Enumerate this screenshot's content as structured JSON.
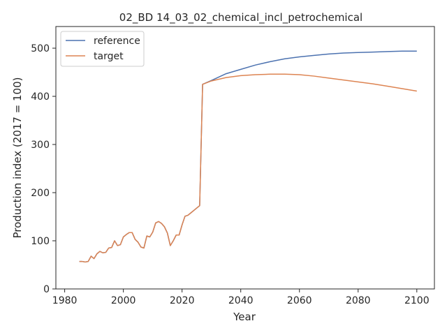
{
  "chart_data": {
    "type": "line",
    "title": "02_BD 14_03_02_chemical_incl_petrochemical",
    "xlabel": "Year",
    "ylabel": "Production index (2017 = 100)",
    "xlim": [
      1977,
      2106
    ],
    "ylim": [
      0,
      545
    ],
    "xticks": [
      1980,
      2000,
      2020,
      2040,
      2060,
      2080,
      2100
    ],
    "yticks": [
      0,
      100,
      200,
      300,
      400,
      500
    ],
    "grid": false,
    "legend_position": "top-left",
    "series": [
      {
        "name": "reference",
        "color": "#4c72b0",
        "x": [
          1985,
          1986,
          1987,
          1988,
          1989,
          1990,
          1991,
          1992,
          1993,
          1994,
          1995,
          1996,
          1997,
          1998,
          1999,
          2000,
          2001,
          2002,
          2003,
          2004,
          2005,
          2006,
          2007,
          2008,
          2009,
          2010,
          2011,
          2012,
          2013,
          2014,
          2015,
          2016,
          2017,
          2018,
          2019,
          2020,
          2021,
          2022,
          2023,
          2024,
          2025,
          2026,
          2027,
          2030,
          2035,
          2040,
          2045,
          2050,
          2055,
          2060,
          2065,
          2070,
          2075,
          2080,
          2085,
          2090,
          2095,
          2100
        ],
        "y": [
          57,
          57,
          56,
          57,
          68,
          63,
          73,
          78,
          75,
          76,
          85,
          86,
          100,
          90,
          92,
          108,
          113,
          117,
          117,
          103,
          97,
          87,
          85,
          110,
          108,
          118,
          137,
          140,
          136,
          129,
          116,
          90,
          100,
          112,
          112,
          133,
          151,
          153,
          158,
          163,
          168,
          173,
          425,
          433,
          447,
          456,
          465,
          472,
          478,
          482,
          485,
          488,
          490,
          491,
          492,
          493,
          494,
          494
        ]
      },
      {
        "name": "target",
        "color": "#dd8452",
        "x": [
          1985,
          1986,
          1987,
          1988,
          1989,
          1990,
          1991,
          1992,
          1993,
          1994,
          1995,
          1996,
          1997,
          1998,
          1999,
          2000,
          2001,
          2002,
          2003,
          2004,
          2005,
          2006,
          2007,
          2008,
          2009,
          2010,
          2011,
          2012,
          2013,
          2014,
          2015,
          2016,
          2017,
          2018,
          2019,
          2020,
          2021,
          2022,
          2023,
          2024,
          2025,
          2026,
          2027,
          2030,
          2035,
          2040,
          2045,
          2050,
          2055,
          2060,
          2065,
          2070,
          2075,
          2080,
          2085,
          2090,
          2095,
          2100
        ],
        "y": [
          57,
          57,
          56,
          57,
          68,
          63,
          73,
          78,
          75,
          76,
          85,
          86,
          100,
          90,
          92,
          108,
          113,
          117,
          117,
          103,
          97,
          87,
          85,
          110,
          108,
          118,
          137,
          140,
          136,
          129,
          116,
          90,
          100,
          112,
          112,
          133,
          151,
          153,
          158,
          163,
          168,
          173,
          425,
          432,
          439,
          443,
          445,
          446,
          446,
          445,
          442,
          438,
          434,
          430,
          426,
          421,
          416,
          411
        ]
      }
    ]
  }
}
